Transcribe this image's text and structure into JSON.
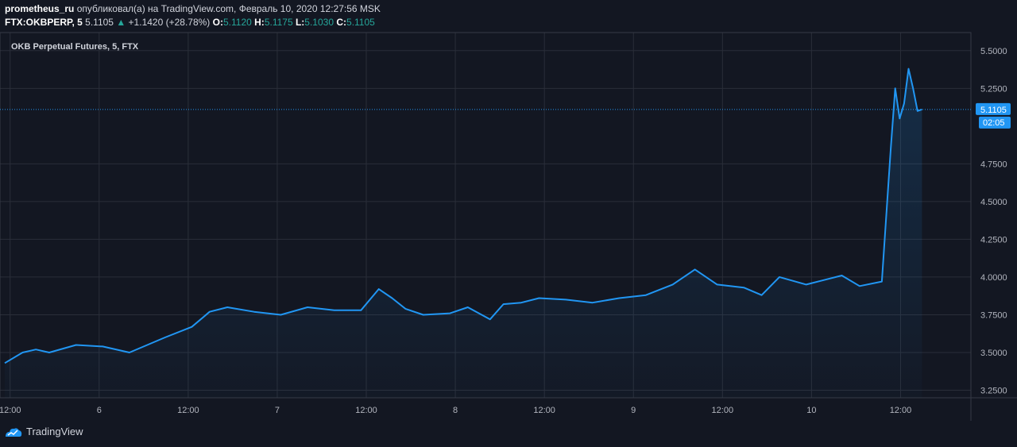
{
  "header": {
    "author": "prometheus_ru",
    "published_text": "опубликовал(а) на TradingView.com, Февраль 10, 2020 12:27:56 MSK",
    "symbol": "FTX:OKBPERP, 5",
    "last_price": "5.1105",
    "change_arrow": "▲",
    "change": "+1.1420 (+28.78%)",
    "ohlc": [
      {
        "label": "O:",
        "value": "5.1120"
      },
      {
        "label": "H:",
        "value": "5.1175"
      },
      {
        "label": "L:",
        "value": "5.1030"
      },
      {
        "label": "C:",
        "value": "5.1105"
      }
    ]
  },
  "colors": {
    "background": "#131722",
    "grid": "#2a2e39",
    "line": "#2196f3",
    "badge": "#2196f3",
    "up": "#26a69a"
  },
  "footer": {
    "brand": "TradingView"
  },
  "chart_data": {
    "type": "line",
    "title": "OKB Perpetual Futures, 5, FTX",
    "x_ticks": [
      "12:00",
      "6",
      "12:00",
      "7",
      "12:00",
      "8",
      "12:00",
      "9",
      "12:00",
      "10",
      "12:00"
    ],
    "y_ticks": [
      "5.5000",
      "5.2500",
      "4.7500",
      "4.5000",
      "4.2500",
      "4.0000",
      "3.7500",
      "3.5000",
      "3.2500"
    ],
    "ylim": [
      3.2,
      5.62
    ],
    "grid": true,
    "last_price_label": "5.1105",
    "countdown_label": "02:05",
    "x_range": [
      0,
      10.85
    ],
    "series": [
      {
        "x": [
          0,
          0.2,
          0.35,
          0.5,
          0.8,
          1.1,
          1.4,
          1.8,
          2.1,
          2.3,
          2.5,
          2.8,
          3.1,
          3.4,
          3.7,
          4.0,
          4.2,
          4.35,
          4.5,
          4.7,
          5.0,
          5.2,
          5.45,
          5.6,
          5.8,
          6.0,
          6.3,
          6.6,
          6.9,
          7.2,
          7.5,
          7.75,
          8.0,
          8.3,
          8.5,
          8.7,
          9.0,
          9.2,
          9.4,
          9.6,
          9.85,
          9.95,
          10.0,
          10.05,
          10.1,
          10.15,
          10.2,
          10.25,
          10.3
        ],
        "y": [
          3.43,
          3.5,
          3.52,
          3.5,
          3.55,
          3.54,
          3.5,
          3.6,
          3.67,
          3.77,
          3.8,
          3.77,
          3.75,
          3.8,
          3.78,
          3.78,
          3.92,
          3.86,
          3.79,
          3.75,
          3.76,
          3.8,
          3.72,
          3.82,
          3.83,
          3.86,
          3.85,
          3.83,
          3.86,
          3.88,
          3.95,
          4.05,
          3.95,
          3.93,
          3.88,
          4.0,
          3.95,
          3.98,
          4.01,
          3.94,
          3.97,
          4.85,
          5.25,
          5.05,
          5.15,
          5.38,
          5.25,
          5.1,
          5.1105
        ]
      }
    ]
  }
}
